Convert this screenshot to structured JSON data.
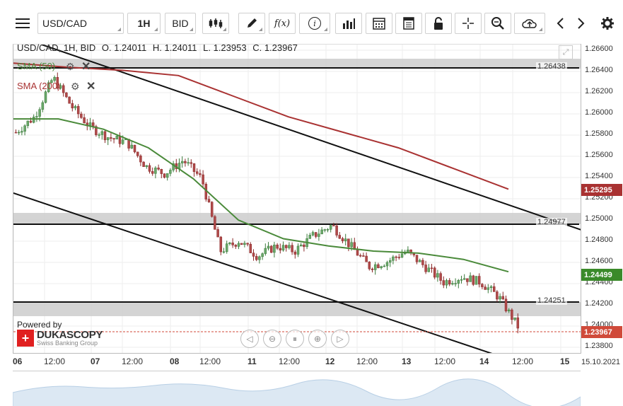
{
  "toolbar": {
    "symbol": "USD/CAD",
    "timeframe": "1H",
    "side": "BID",
    "icons": [
      "candlestick-icon",
      "pencil-icon",
      "function-icon",
      "info-icon",
      "bar-chart-icon",
      "calendar-icon",
      "notes-icon",
      "lock-icon",
      "crosshair-icon",
      "zoom-icon",
      "cloud-upload-icon",
      "gear-icon"
    ],
    "function_label": "f(x)",
    "info_label": "i"
  },
  "chart_info": {
    "title": "USD/CAD, 1H, BID",
    "open": "O. 1.24011",
    "high": "H. 1.24011",
    "low": "L. 1.23953",
    "close": "C. 1.23967"
  },
  "indicators": {
    "sma50": {
      "label": "SMA (50)",
      "color": "#4a8a3a"
    },
    "sma200": {
      "label": "SMA (200)",
      "color": "#a93232"
    }
  },
  "branding": {
    "powered_by": "Powered by",
    "name": "DUKASCOPY",
    "tagline": "Swiss Banking Group"
  },
  "price_axis": {
    "ticks": [
      "1.26600",
      "1.26400",
      "1.26200",
      "1.26000",
      "1.25800",
      "1.25600",
      "1.25400",
      "1.25200",
      "1.25000",
      "1.24800",
      "1.24600",
      "1.24400",
      "1.24200",
      "1.24000",
      "1.23800"
    ],
    "tags": [
      {
        "value": "1.25295",
        "color": "#a93232"
      },
      {
        "value": "1.24499",
        "color": "#3a8a2a"
      },
      {
        "value": "1.23967",
        "color": "#d04a3a"
      }
    ]
  },
  "levels": [
    "1.26438",
    "1.24977",
    "1.24251"
  ],
  "time_axis": {
    "labels": [
      "06",
      "12:00",
      "07",
      "12:00",
      "08",
      "12:00",
      "11",
      "12:00",
      "12",
      "12:00",
      "13",
      "12:00",
      "14",
      "12:00",
      "15"
    ],
    "date": "15.10.2021"
  },
  "chart_data": {
    "type": "candlestick",
    "title": "USD/CAD, 1H, BID",
    "ylim": [
      1.237,
      1.267
    ],
    "x": [
      "06",
      "07",
      "08",
      "11",
      "12",
      "13",
      "14",
      "15"
    ],
    "sma50_points": [
      1.2598,
      1.2598,
      1.2588,
      1.257,
      1.254,
      1.25,
      1.2482,
      1.2475,
      1.247,
      1.2468,
      1.2462,
      1.245
    ],
    "sma200_points": [
      1.2652,
      1.2648,
      1.2645,
      1.264,
      1.262,
      1.26,
      1.2585,
      1.257,
      1.255,
      1.253
    ],
    "close_series": [
      1.2585,
      1.26,
      1.2638,
      1.261,
      1.259,
      1.258,
      1.2575,
      1.2552,
      1.2545,
      1.2558,
      1.254,
      1.247,
      1.248,
      1.2465,
      1.2475,
      1.247,
      1.2485,
      1.2495,
      1.2475,
      1.2455,
      1.246,
      1.247,
      1.2455,
      1.244,
      1.2445,
      1.244,
      1.2425,
      1.2397
    ]
  }
}
